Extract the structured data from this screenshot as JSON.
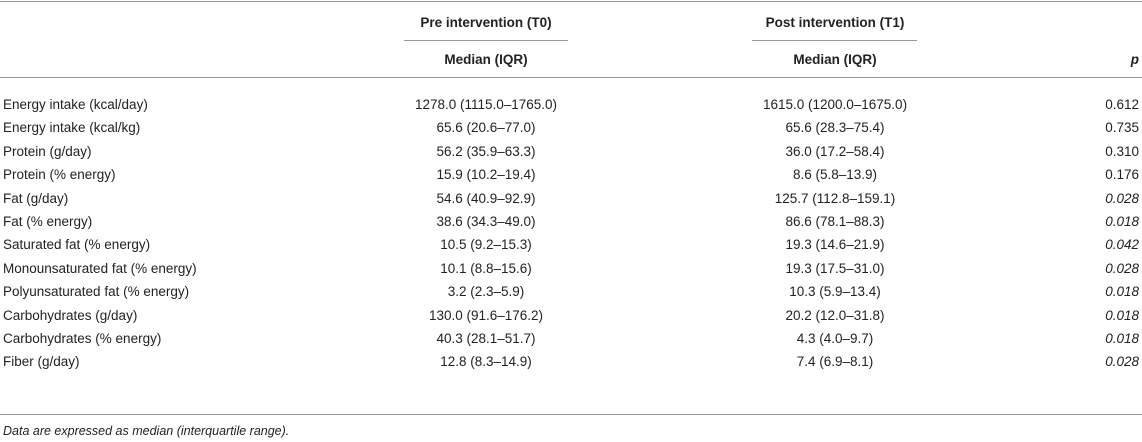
{
  "table": {
    "group_headers": [
      "Pre intervention (T0)",
      "Post intervention (T1)"
    ],
    "sub_headers": {
      "pre": "Median (IQR)",
      "post": "Median (IQR)",
      "p": "p"
    },
    "rows": [
      {
        "label": "Energy intake (kcal/day)",
        "pre": "1278.0 (1115.0–1765.0)",
        "post": "1615.0 (1200.0–1675.0)",
        "p": "0.612",
        "significant": false
      },
      {
        "label": "Energy intake (kcal/kg)",
        "pre": "65.6 (20.6–77.0)",
        "post": "65.6 (28.3–75.4)",
        "p": "0.735",
        "significant": false
      },
      {
        "label": "Protein (g/day)",
        "pre": "56.2 (35.9–63.3)",
        "post": "36.0 (17.2–58.4)",
        "p": "0.310",
        "significant": false
      },
      {
        "label": "Protein (% energy)",
        "pre": "15.9 (10.2–19.4)",
        "post": "8.6 (5.8–13.9)",
        "p": "0.176",
        "significant": false
      },
      {
        "label": "Fat (g/day)",
        "pre": "54.6 (40.9–92.9)",
        "post": "125.7 (112.8–159.1)",
        "p": "0.028",
        "significant": true
      },
      {
        "label": "Fat (% energy)",
        "pre": "38.6 (34.3–49.0)",
        "post": "86.6 (78.1–88.3)",
        "p": "0.018",
        "significant": true
      },
      {
        "label": "Saturated fat (% energy)",
        "pre": "10.5 (9.2–15.3)",
        "post": "19.3 (14.6–21.9)",
        "p": "0.042",
        "significant": true
      },
      {
        "label": "Monounsaturated fat (% energy)",
        "pre": "10.1 (8.8–15.6)",
        "post": "19.3 (17.5–31.0)",
        "p": "0.028",
        "significant": true
      },
      {
        "label": "Polyunsaturated fat (% energy)",
        "pre": "3.2 (2.3–5.9)",
        "post": "10.3 (5.9–13.4)",
        "p": "0.018",
        "significant": true
      },
      {
        "label": "Carbohydrates (g/day)",
        "pre": "130.0 (91.6–176.2)",
        "post": "20.2 (12.0–31.8)",
        "p": "0.018",
        "significant": true
      },
      {
        "label": "Carbohydrates (% energy)",
        "pre": "40.3 (28.1–51.7)",
        "post": "4.3 (4.0–9.7)",
        "p": "0.018",
        "significant": true
      },
      {
        "label": "Fiber (g/day)",
        "pre": "12.8 (8.3–14.9)",
        "post": "7.4 (6.9–8.1)",
        "p": "0.028",
        "significant": true
      }
    ],
    "footnote": "Data are expressed as median (interquartile range)."
  }
}
